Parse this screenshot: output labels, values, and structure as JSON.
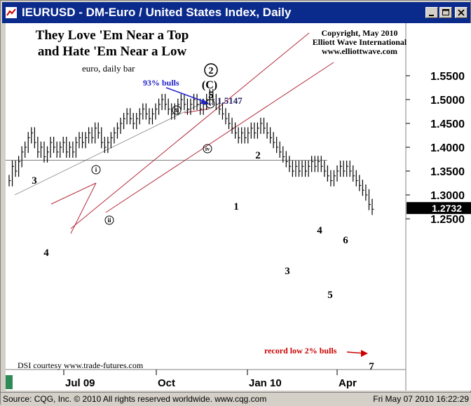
{
  "window": {
    "title": "IEURUSD - DM-Euro / United States Index, Daily",
    "icon": "chart-line-icon",
    "controls": [
      "minimize-icon",
      "maximize-icon",
      "close-icon"
    ]
  },
  "annotations": {
    "headline_line1": "They Love 'Em Near a Top",
    "headline_line2": "and Hate 'Em Near a Low",
    "subtitle": "euro, daily bar",
    "copyright_line1": "Copyright, May 2010",
    "copyright_line2": "Elliott Wave International",
    "copyright_line3": "www.elliottwave.com",
    "bulls_top": "93% bulls",
    "peak_price": "1.5147",
    "bulls_low": "record low 2% bulls",
    "dsi_credit": "DSI courtesy www.trade-futures.com",
    "wave_circled_2": "2",
    "wave_C": "(C)",
    "wave_5_top": "5",
    "roman_i": "i",
    "roman_ii": "ii",
    "roman_iii": "iii",
    "roman_iv": "iv",
    "roman_v": "v",
    "wave_3_left": "3",
    "wave_4_left": "4",
    "wave_1": "1",
    "wave_2": "2",
    "wave_3": "3",
    "wave_4": "4",
    "wave_5": "5",
    "wave_6": "6",
    "wave_7": "7"
  },
  "chart_data": {
    "type": "bar",
    "title": "IEURUSD - DM-Euro / United States Index, Daily",
    "ylim": [
      1.225,
      1.58
    ],
    "yticks": [
      "1.5500",
      "1.5000",
      "1.4500",
      "1.4000",
      "1.3500",
      "1.3000",
      "1.2500"
    ],
    "ytick_values": [
      1.55,
      1.5,
      1.45,
      1.4,
      1.35,
      1.3,
      1.25
    ],
    "xticks": [
      "Jul 09",
      "Oct",
      "Jan 10",
      "Apr"
    ],
    "last_price": "1.2732",
    "last_price_value": 1.2732,
    "peak_value": 1.5147,
    "support_level": 1.373,
    "bars_close": [
      1.33,
      1.36,
      1.35,
      1.37,
      1.39,
      1.4,
      1.42,
      1.43,
      1.41,
      1.39,
      1.4,
      1.38,
      1.39,
      1.41,
      1.4,
      1.39,
      1.4,
      1.41,
      1.39,
      1.4,
      1.39,
      1.41,
      1.42,
      1.41,
      1.42,
      1.43,
      1.42,
      1.44,
      1.43,
      1.41,
      1.4,
      1.41,
      1.42,
      1.43,
      1.44,
      1.45,
      1.46,
      1.47,
      1.46,
      1.45,
      1.46,
      1.47,
      1.48,
      1.47,
      1.46,
      1.47,
      1.48,
      1.49,
      1.5,
      1.49,
      1.48,
      1.47,
      1.48,
      1.49,
      1.5,
      1.49,
      1.48,
      1.49,
      1.5,
      1.49,
      1.48,
      1.49,
      1.5,
      1.51,
      1.5,
      1.49,
      1.48,
      1.47,
      1.46,
      1.45,
      1.44,
      1.43,
      1.42,
      1.43,
      1.42,
      1.43,
      1.44,
      1.43,
      1.44,
      1.45,
      1.44,
      1.43,
      1.42,
      1.41,
      1.4,
      1.39,
      1.38,
      1.37,
      1.36,
      1.35,
      1.36,
      1.35,
      1.36,
      1.35,
      1.36,
      1.37,
      1.36,
      1.37,
      1.36,
      1.35,
      1.34,
      1.33,
      1.34,
      1.35,
      1.36,
      1.35,
      1.36,
      1.35,
      1.34,
      1.33,
      1.32,
      1.31,
      1.3,
      1.28,
      1.27
    ]
  },
  "status": {
    "source": "Source: CQG, Inc. © 2010 All rights reserved worldwide. www.cqg.com",
    "timestamp": "Fri May 07 2010 16:22:29"
  }
}
